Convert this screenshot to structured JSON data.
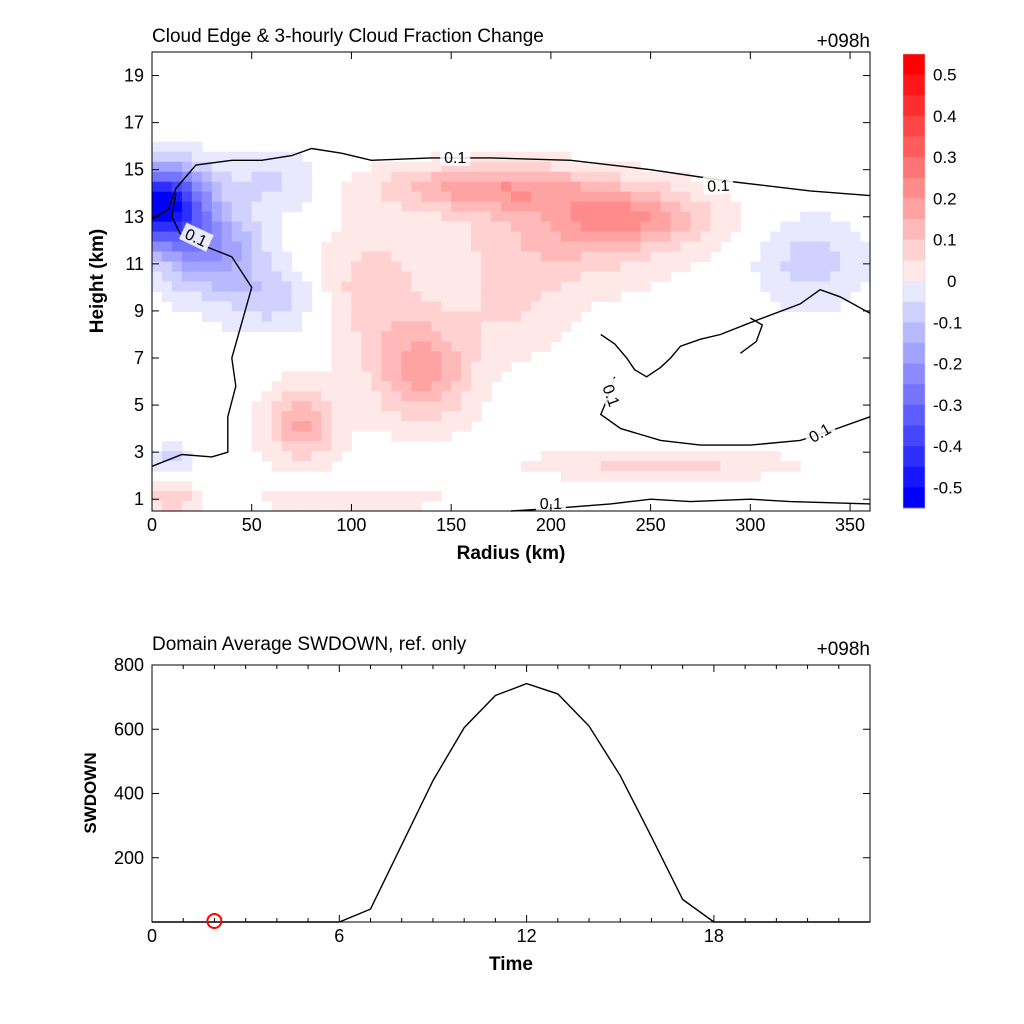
{
  "chart_data": [
    {
      "type": "heatmap",
      "title": "Cloud Edge & 3-hourly Cloud Fraction Change",
      "time_label": "+098h",
      "xlabel": "Radius (km)",
      "ylabel": "Height (km)",
      "xlim": [
        0,
        360
      ],
      "ylim": [
        0.5,
        20
      ],
      "xticks": [
        0,
        50,
        100,
        150,
        200,
        250,
        300,
        350
      ],
      "yticks": [
        1,
        3,
        5,
        7,
        9,
        11,
        13,
        15,
        17,
        19
      ],
      "colorbar": {
        "range": [
          -0.55,
          0.55
        ],
        "ticks": [
          "0.5",
          "0.4",
          "0.3",
          "0.2",
          "0.1",
          "0",
          "-0.1",
          "-0.2",
          "-0.3",
          "-0.4",
          "-0.5"
        ],
        "neg_color": "#0000ff",
        "pos_color": "#ff0000",
        "mid_color": "#ffffff"
      },
      "contour_level": "0.1",
      "contour_labels": [
        "0.1",
        "0.1",
        "0.1",
        "0.1",
        "0.1",
        "0.1"
      ],
      "blobs": [
        {
          "x": 5,
          "y": 13.5,
          "rx": 22,
          "ry": 1.6,
          "v": -0.55
        },
        {
          "x": 30,
          "y": 11.5,
          "rx": 25,
          "ry": 1.8,
          "v": -0.22
        },
        {
          "x": 60,
          "y": 9.5,
          "rx": 22,
          "ry": 1.3,
          "v": -0.1
        },
        {
          "x": 60,
          "y": 14.5,
          "rx": 25,
          "ry": 1.2,
          "v": -0.08
        },
        {
          "x": 330,
          "y": 11.0,
          "rx": 25,
          "ry": 1.8,
          "v": -0.1
        },
        {
          "x": 10,
          "y": 2.8,
          "rx": 8,
          "ry": 0.6,
          "v": -0.1
        },
        {
          "x": 170,
          "y": 14.2,
          "rx": 55,
          "ry": 1.0,
          "v": 0.2
        },
        {
          "x": 240,
          "y": 13.0,
          "rx": 40,
          "ry": 1.2,
          "v": 0.18
        },
        {
          "x": 205,
          "y": 12.0,
          "rx": 55,
          "ry": 2.0,
          "v": 0.12
        },
        {
          "x": 135,
          "y": 6.5,
          "rx": 25,
          "ry": 2.2,
          "v": 0.2
        },
        {
          "x": 110,
          "y": 10.0,
          "rx": 25,
          "ry": 2.5,
          "v": 0.1
        },
        {
          "x": 75,
          "y": 4.2,
          "rx": 18,
          "ry": 1.5,
          "v": 0.18
        },
        {
          "x": 255,
          "y": 2.5,
          "rx": 60,
          "ry": 0.6,
          "v": 0.1
        },
        {
          "x": 180,
          "y": 9.0,
          "rx": 30,
          "ry": 2.0,
          "v": 0.07
        },
        {
          "x": 10,
          "y": 1.0,
          "rx": 12,
          "ry": 0.7,
          "v": 0.12
        },
        {
          "x": 100,
          "y": 1.0,
          "rx": 50,
          "ry": 0.5,
          "v": 0.06
        }
      ],
      "contours": [
        [
          [
            0,
            12.9
          ],
          [
            8,
            13.3
          ],
          [
            12,
            14.2
          ],
          [
            22,
            15.2
          ],
          [
            40,
            15.4
          ],
          [
            55,
            15.4
          ],
          [
            70,
            15.6
          ],
          [
            80,
            15.9
          ],
          [
            95,
            15.7
          ],
          [
            110,
            15.4
          ],
          [
            140,
            15.5
          ],
          [
            170,
            15.5
          ],
          [
            210,
            15.4
          ],
          [
            250,
            15.0
          ],
          [
            290,
            14.5
          ],
          [
            330,
            14.1
          ],
          [
            360,
            13.9
          ]
        ],
        [
          [
            12,
            14.0
          ],
          [
            10,
            13.0
          ],
          [
            14,
            12.3
          ],
          [
            25,
            11.8
          ],
          [
            40,
            11.3
          ],
          [
            50,
            10.0
          ],
          [
            45,
            8.5
          ],
          [
            40,
            7.0
          ],
          [
            42,
            5.8
          ],
          [
            38,
            4.5
          ],
          [
            38,
            3.0
          ],
          [
            30,
            2.8
          ],
          [
            15,
            2.9
          ],
          [
            0,
            2.4
          ]
        ],
        [
          [
            360,
            8.9
          ],
          [
            345,
            9.6
          ],
          [
            335,
            9.9
          ],
          [
            325,
            9.3
          ],
          [
            300,
            8.5
          ],
          [
            285,
            8.0
          ],
          [
            275,
            7.8
          ],
          [
            265,
            7.5
          ],
          [
            260,
            7.0
          ],
          [
            255,
            6.6
          ],
          [
            248,
            6.2
          ],
          [
            242,
            6.5
          ],
          [
            238,
            7.0
          ],
          [
            232,
            7.6
          ],
          [
            225,
            8.0
          ]
        ],
        [
          [
            232,
            6.2
          ],
          [
            228,
            5.2
          ],
          [
            225,
            4.6
          ],
          [
            235,
            4.0
          ],
          [
            255,
            3.5
          ],
          [
            275,
            3.3
          ],
          [
            300,
            3.3
          ],
          [
            325,
            3.5
          ],
          [
            340,
            3.9
          ],
          [
            360,
            4.5
          ]
        ],
        [
          [
            295,
            7.2
          ],
          [
            303,
            7.7
          ],
          [
            306,
            8.4
          ],
          [
            300,
            8.7
          ]
        ],
        [
          [
            180,
            0.5
          ],
          [
            200,
            0.6
          ],
          [
            230,
            0.8
          ],
          [
            250,
            1.0
          ],
          [
            270,
            0.9
          ],
          [
            300,
            1.0
          ],
          [
            320,
            0.9
          ],
          [
            360,
            0.8
          ]
        ]
      ]
    },
    {
      "type": "line",
      "title": "Domain Average SWDOWN, ref. only",
      "time_label": "+098h",
      "xlabel": "Time",
      "ylabel": "SWDOWN",
      "xlim": [
        0,
        23
      ],
      "ylim": [
        0,
        800
      ],
      "xticks": [
        0,
        6,
        12,
        18
      ],
      "yticks": [
        200,
        400,
        600,
        800
      ],
      "x": [
        0,
        1,
        2,
        3,
        4,
        5,
        6,
        7,
        8,
        9,
        10,
        11,
        12,
        13,
        14,
        15,
        16,
        17,
        18,
        19,
        20,
        21,
        22,
        23
      ],
      "series": [
        {
          "values": [
            0,
            0,
            0,
            0,
            0,
            0,
            0,
            40,
            240,
            440,
            605,
            705,
            742,
            710,
            610,
            455,
            265,
            70,
            0,
            0,
            0,
            0,
            0,
            0
          ]
        }
      ],
      "marker": {
        "x": 2,
        "y": 0,
        "color": "#ff0000"
      }
    }
  ]
}
